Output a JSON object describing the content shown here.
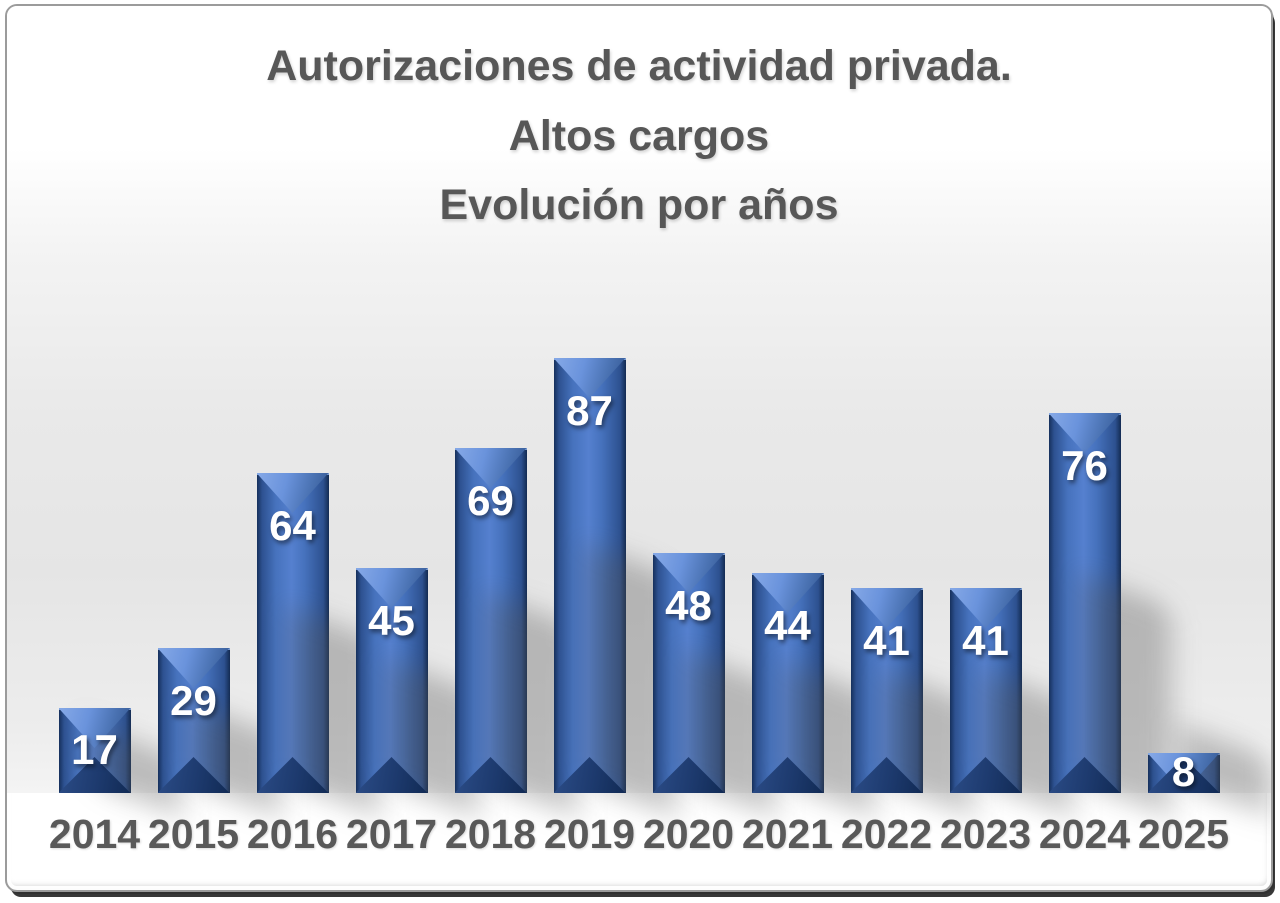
{
  "chart_data": {
    "type": "bar",
    "title_lines": [
      "Autorizaciones de actividad privada.",
      "Altos cargos",
      "Evolución por años"
    ],
    "categories": [
      "2014",
      "2015",
      "2016",
      "2017",
      "2018",
      "2019",
      "2020",
      "2021",
      "2022",
      "2023",
      "2024",
      "2025"
    ],
    "values": [
      17,
      29,
      64,
      45,
      69,
      87,
      48,
      44,
      41,
      41,
      76,
      8
    ],
    "xlabel": "",
    "ylabel": "",
    "ylim": [
      0,
      100
    ],
    "grid": false,
    "legend": false,
    "data_labels": "inside-top, white bold",
    "bar_style": "3d-beveled",
    "colors": {
      "bar_face": "#4672bd",
      "bar_face_highlight": "#5580cf",
      "bar_edge_dark": "#16305c",
      "bar_bevel_top_light": "#86a9e7",
      "bar_bevel_bottom_dark": "#112a54",
      "value_label": "#ffffff",
      "title_text": "#575757",
      "axis_text": "#595959",
      "plot_background_top": "#ffffff",
      "plot_background_mid": "#e5e5e5",
      "frame_border": "#9b9b9b",
      "frame_shadow": "#262626"
    },
    "pixels_per_unit": 5
  }
}
